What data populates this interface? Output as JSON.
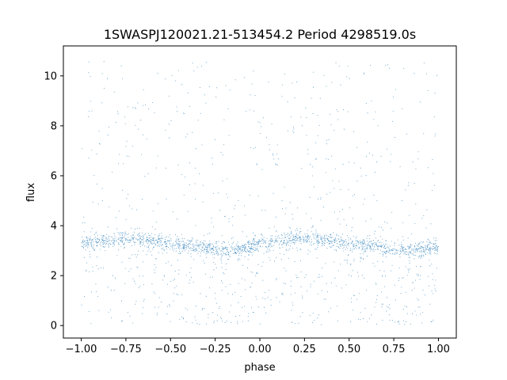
{
  "chart_data": {
    "type": "scatter",
    "title": "1SWASPJ120021.21-513454.2 Period 4298519.0s",
    "xlabel": "phase",
    "ylabel": "flux",
    "xlim": [
      -1.1,
      1.1
    ],
    "ylim": [
      -0.5,
      11.2
    ],
    "xticks": [
      -1.0,
      -0.75,
      -0.5,
      -0.25,
      0.0,
      0.25,
      0.5,
      0.75,
      1.0
    ],
    "xtick_labels": [
      "−1.00",
      "−0.75",
      "−0.50",
      "−0.25",
      "0.00",
      "0.25",
      "0.50",
      "0.75",
      "1.00"
    ],
    "yticks": [
      0,
      2,
      4,
      6,
      8,
      10
    ],
    "ytick_labels": [
      "0",
      "2",
      "4",
      "6",
      "8",
      "10"
    ],
    "grid": false,
    "point_color": "#1f77b4",
    "series": [
      {
        "x_range": [
          -1.0,
          1.0
        ],
        "baseline_flux": [
          [
            -1.0,
            3.3
          ],
          [
            -0.9,
            3.4
          ],
          [
            -0.75,
            3.5
          ],
          [
            -0.6,
            3.4
          ],
          [
            -0.5,
            3.3
          ],
          [
            -0.35,
            3.2
          ],
          [
            -0.25,
            3.05
          ],
          [
            -0.15,
            3.0
          ],
          [
            -0.05,
            3.2
          ],
          [
            0.0,
            3.3
          ],
          [
            0.1,
            3.4
          ],
          [
            0.25,
            3.5
          ],
          [
            0.4,
            3.4
          ],
          [
            0.5,
            3.3
          ],
          [
            0.65,
            3.2
          ],
          [
            0.75,
            3.05
          ],
          [
            0.85,
            3.0
          ],
          [
            1.0,
            3.2
          ]
        ],
        "flux_max": 10.6,
        "flux_min": 0.05
      }
    ]
  }
}
